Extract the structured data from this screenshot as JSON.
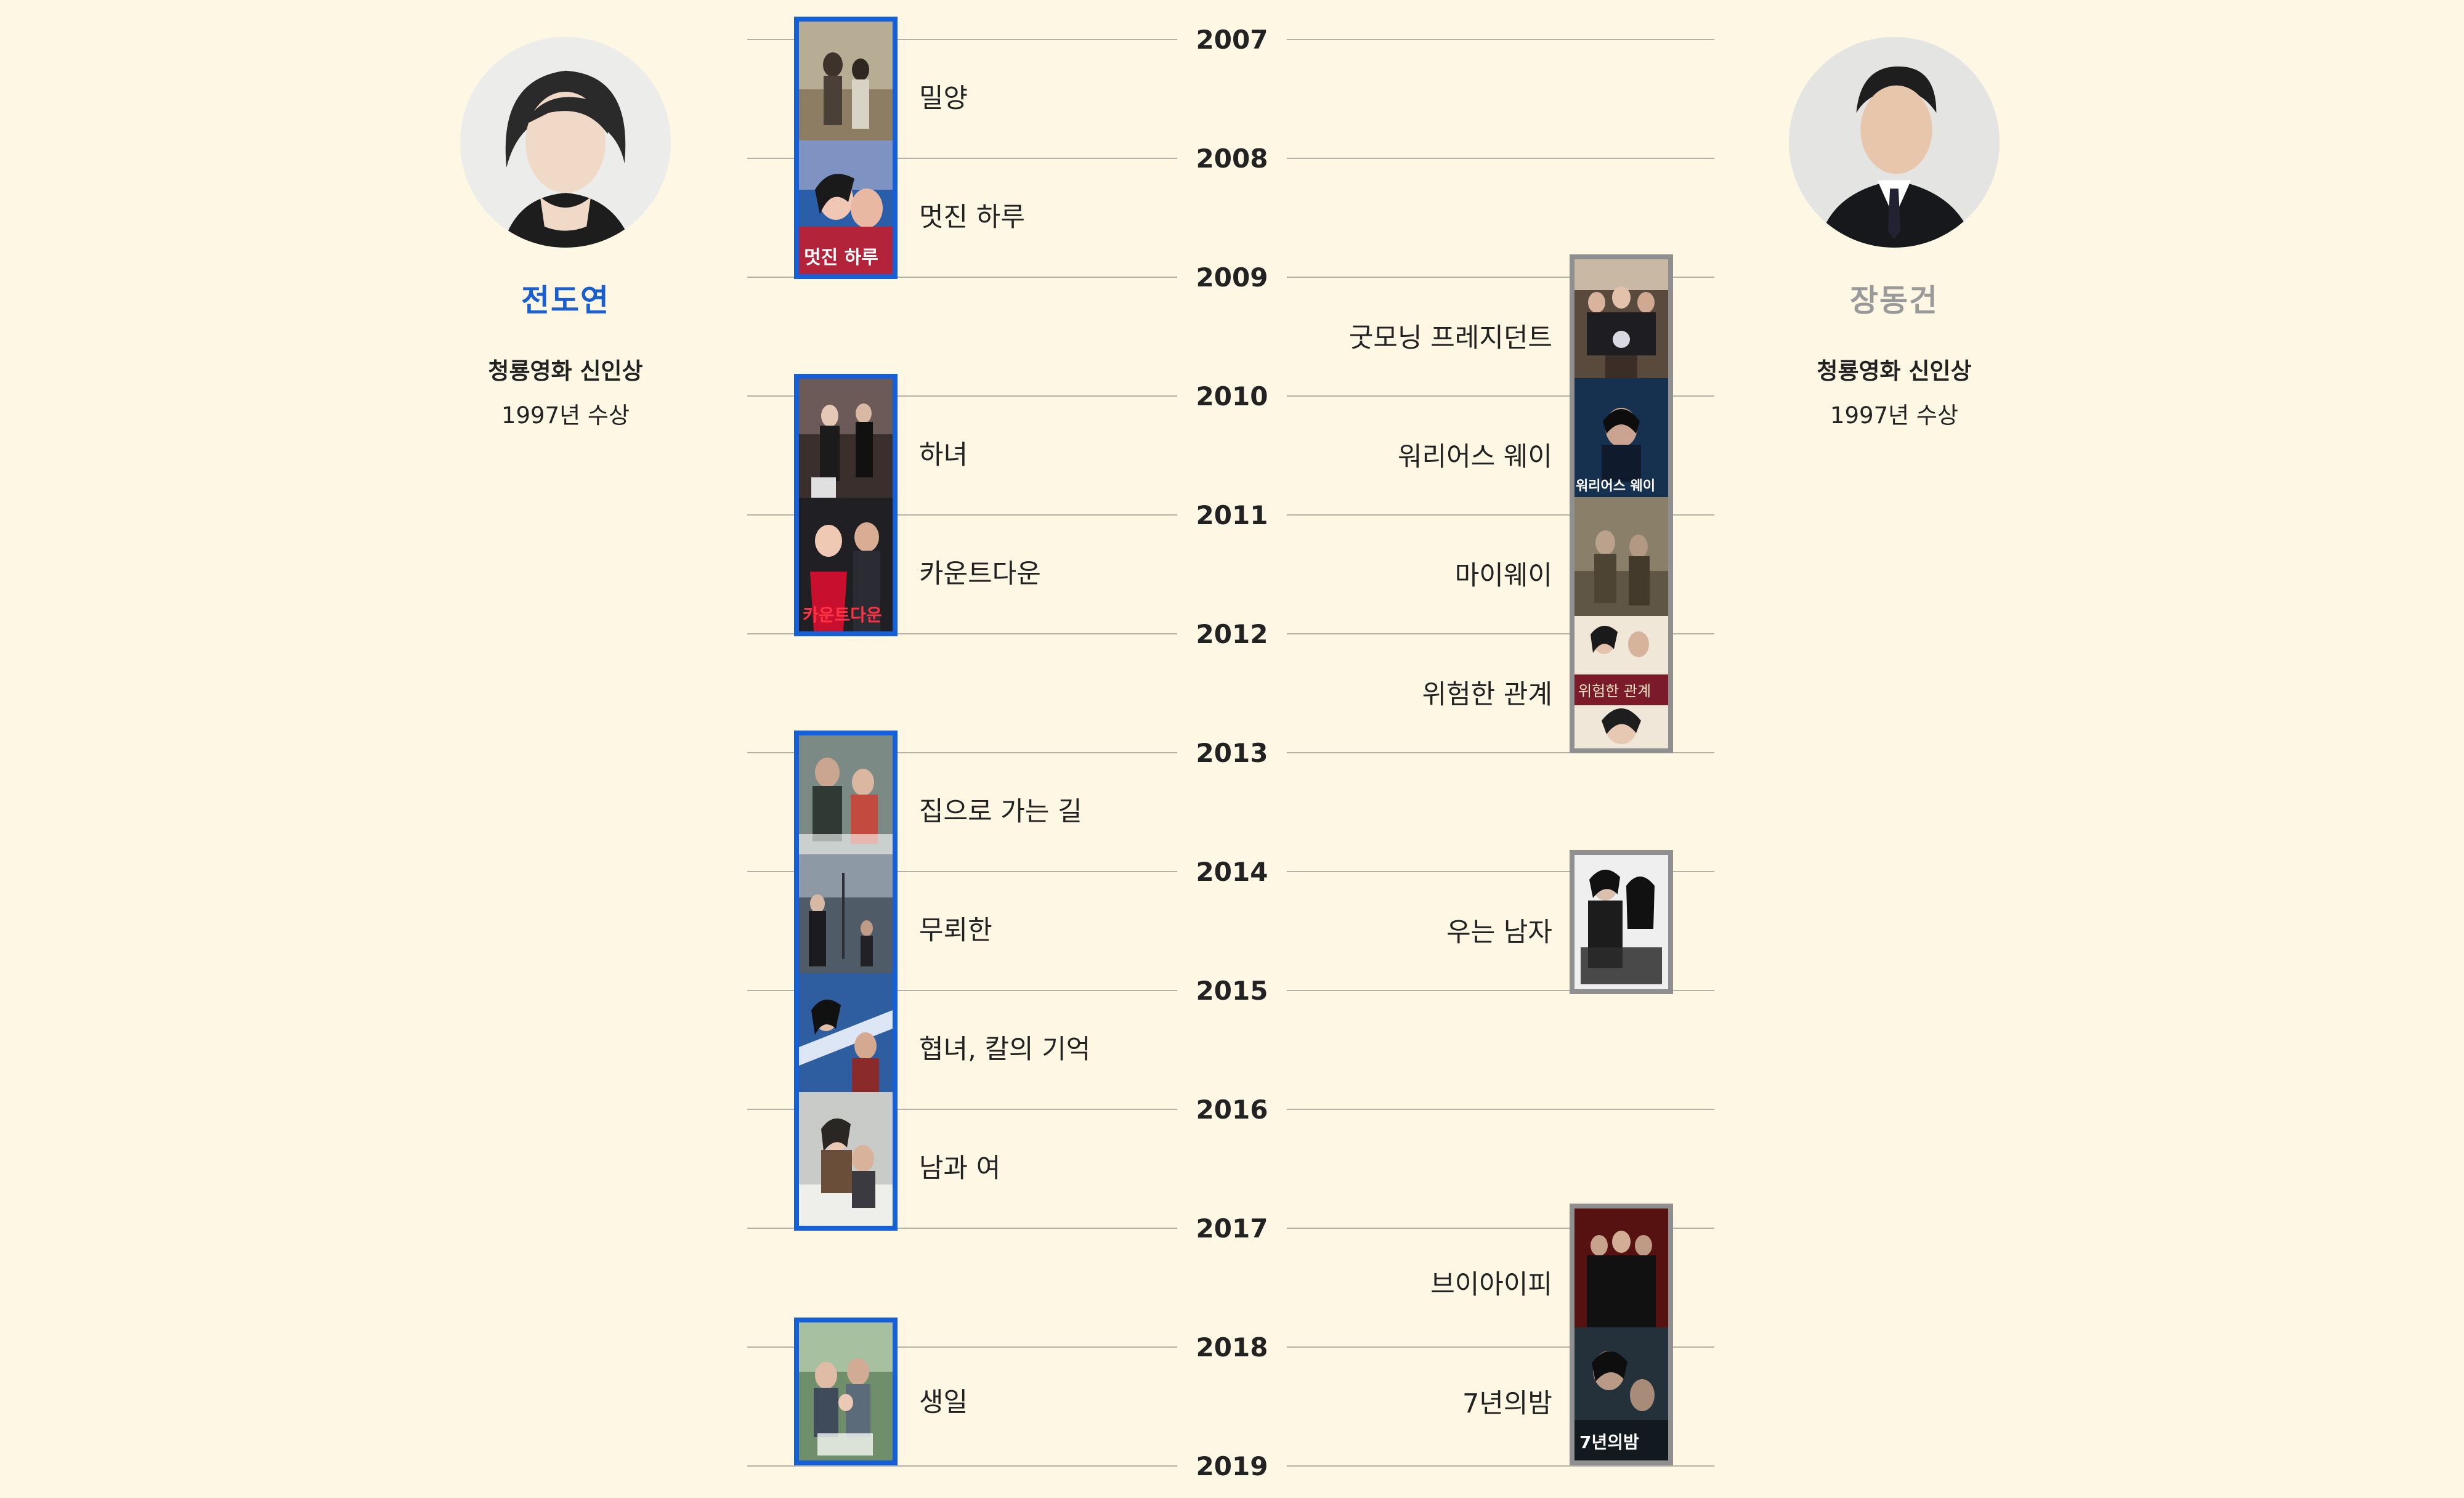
{
  "left_actor": {
    "name": "전도연",
    "award": "청룡영화 신인상",
    "award_year": "1997년 수상",
    "accent_color": "#1560d8"
  },
  "right_actor": {
    "name": "장동건",
    "award": "청룡영화 신인상",
    "award_year": "1997년 수상",
    "accent_color": "#8f8f8f"
  },
  "years": [
    "2007",
    "2008",
    "2009",
    "2010",
    "2011",
    "2012",
    "2013",
    "2014",
    "2015",
    "2016",
    "2017",
    "2018",
    "2019"
  ],
  "left_films": [
    {
      "title": "밀양"
    },
    {
      "title": "멋진 하루",
      "poster_text": "멋진 하루"
    },
    {
      "title": "하녀"
    },
    {
      "title": "카운트다운",
      "poster_text": "카운트다운"
    },
    {
      "title": "집으로 가는 길"
    },
    {
      "title": "무뢰한"
    },
    {
      "title": "협녀, 칼의 기억"
    },
    {
      "title": "남과 여"
    },
    {
      "title": "생일"
    }
  ],
  "right_films": [
    {
      "title": "굿모닝 프레지던트"
    },
    {
      "title": "워리어스 웨이",
      "poster_text": "워리어스 웨이"
    },
    {
      "title": "마이웨이"
    },
    {
      "title": "위험한 관계",
      "poster_text": "위험한 관계"
    },
    {
      "title": "우는 남자"
    },
    {
      "title": "브이아이피"
    },
    {
      "title": "7년의밤",
      "poster_text": "7년의밤"
    }
  ]
}
